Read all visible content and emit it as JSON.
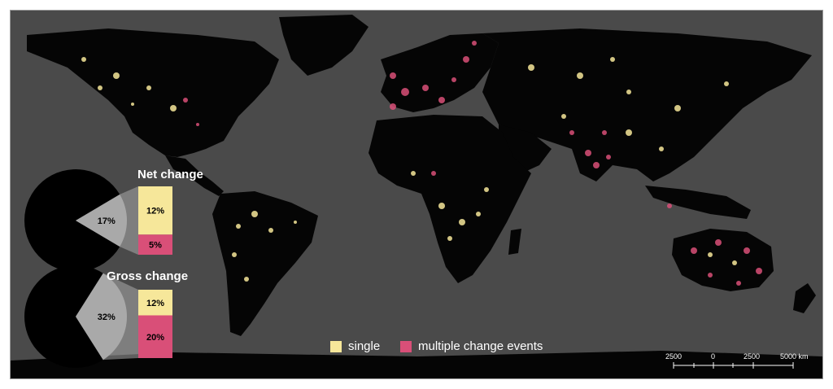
{
  "colors": {
    "ocean": "#4a4a4a",
    "land": "#050505",
    "single": "#f6e79a",
    "multiple": "#d94f78",
    "pie_slice": "#a9a9a9"
  },
  "net_change": {
    "title": "Net change",
    "pie_value": 17,
    "pie_label": "17%",
    "single_label": "12%",
    "multiple_label": "5%",
    "single_value": 12,
    "multiple_value": 5
  },
  "gross_change": {
    "title": "Gross change",
    "pie_value": 32,
    "pie_label": "32%",
    "single_label": "12%",
    "multiple_label": "20%",
    "single_value": 12,
    "multiple_value": 20
  },
  "legend": {
    "single_label": "single",
    "multiple_label": "multiple change events"
  },
  "scale_bar": {
    "ticks": [
      "2500",
      "0",
      "2500",
      "5000 km"
    ]
  }
}
